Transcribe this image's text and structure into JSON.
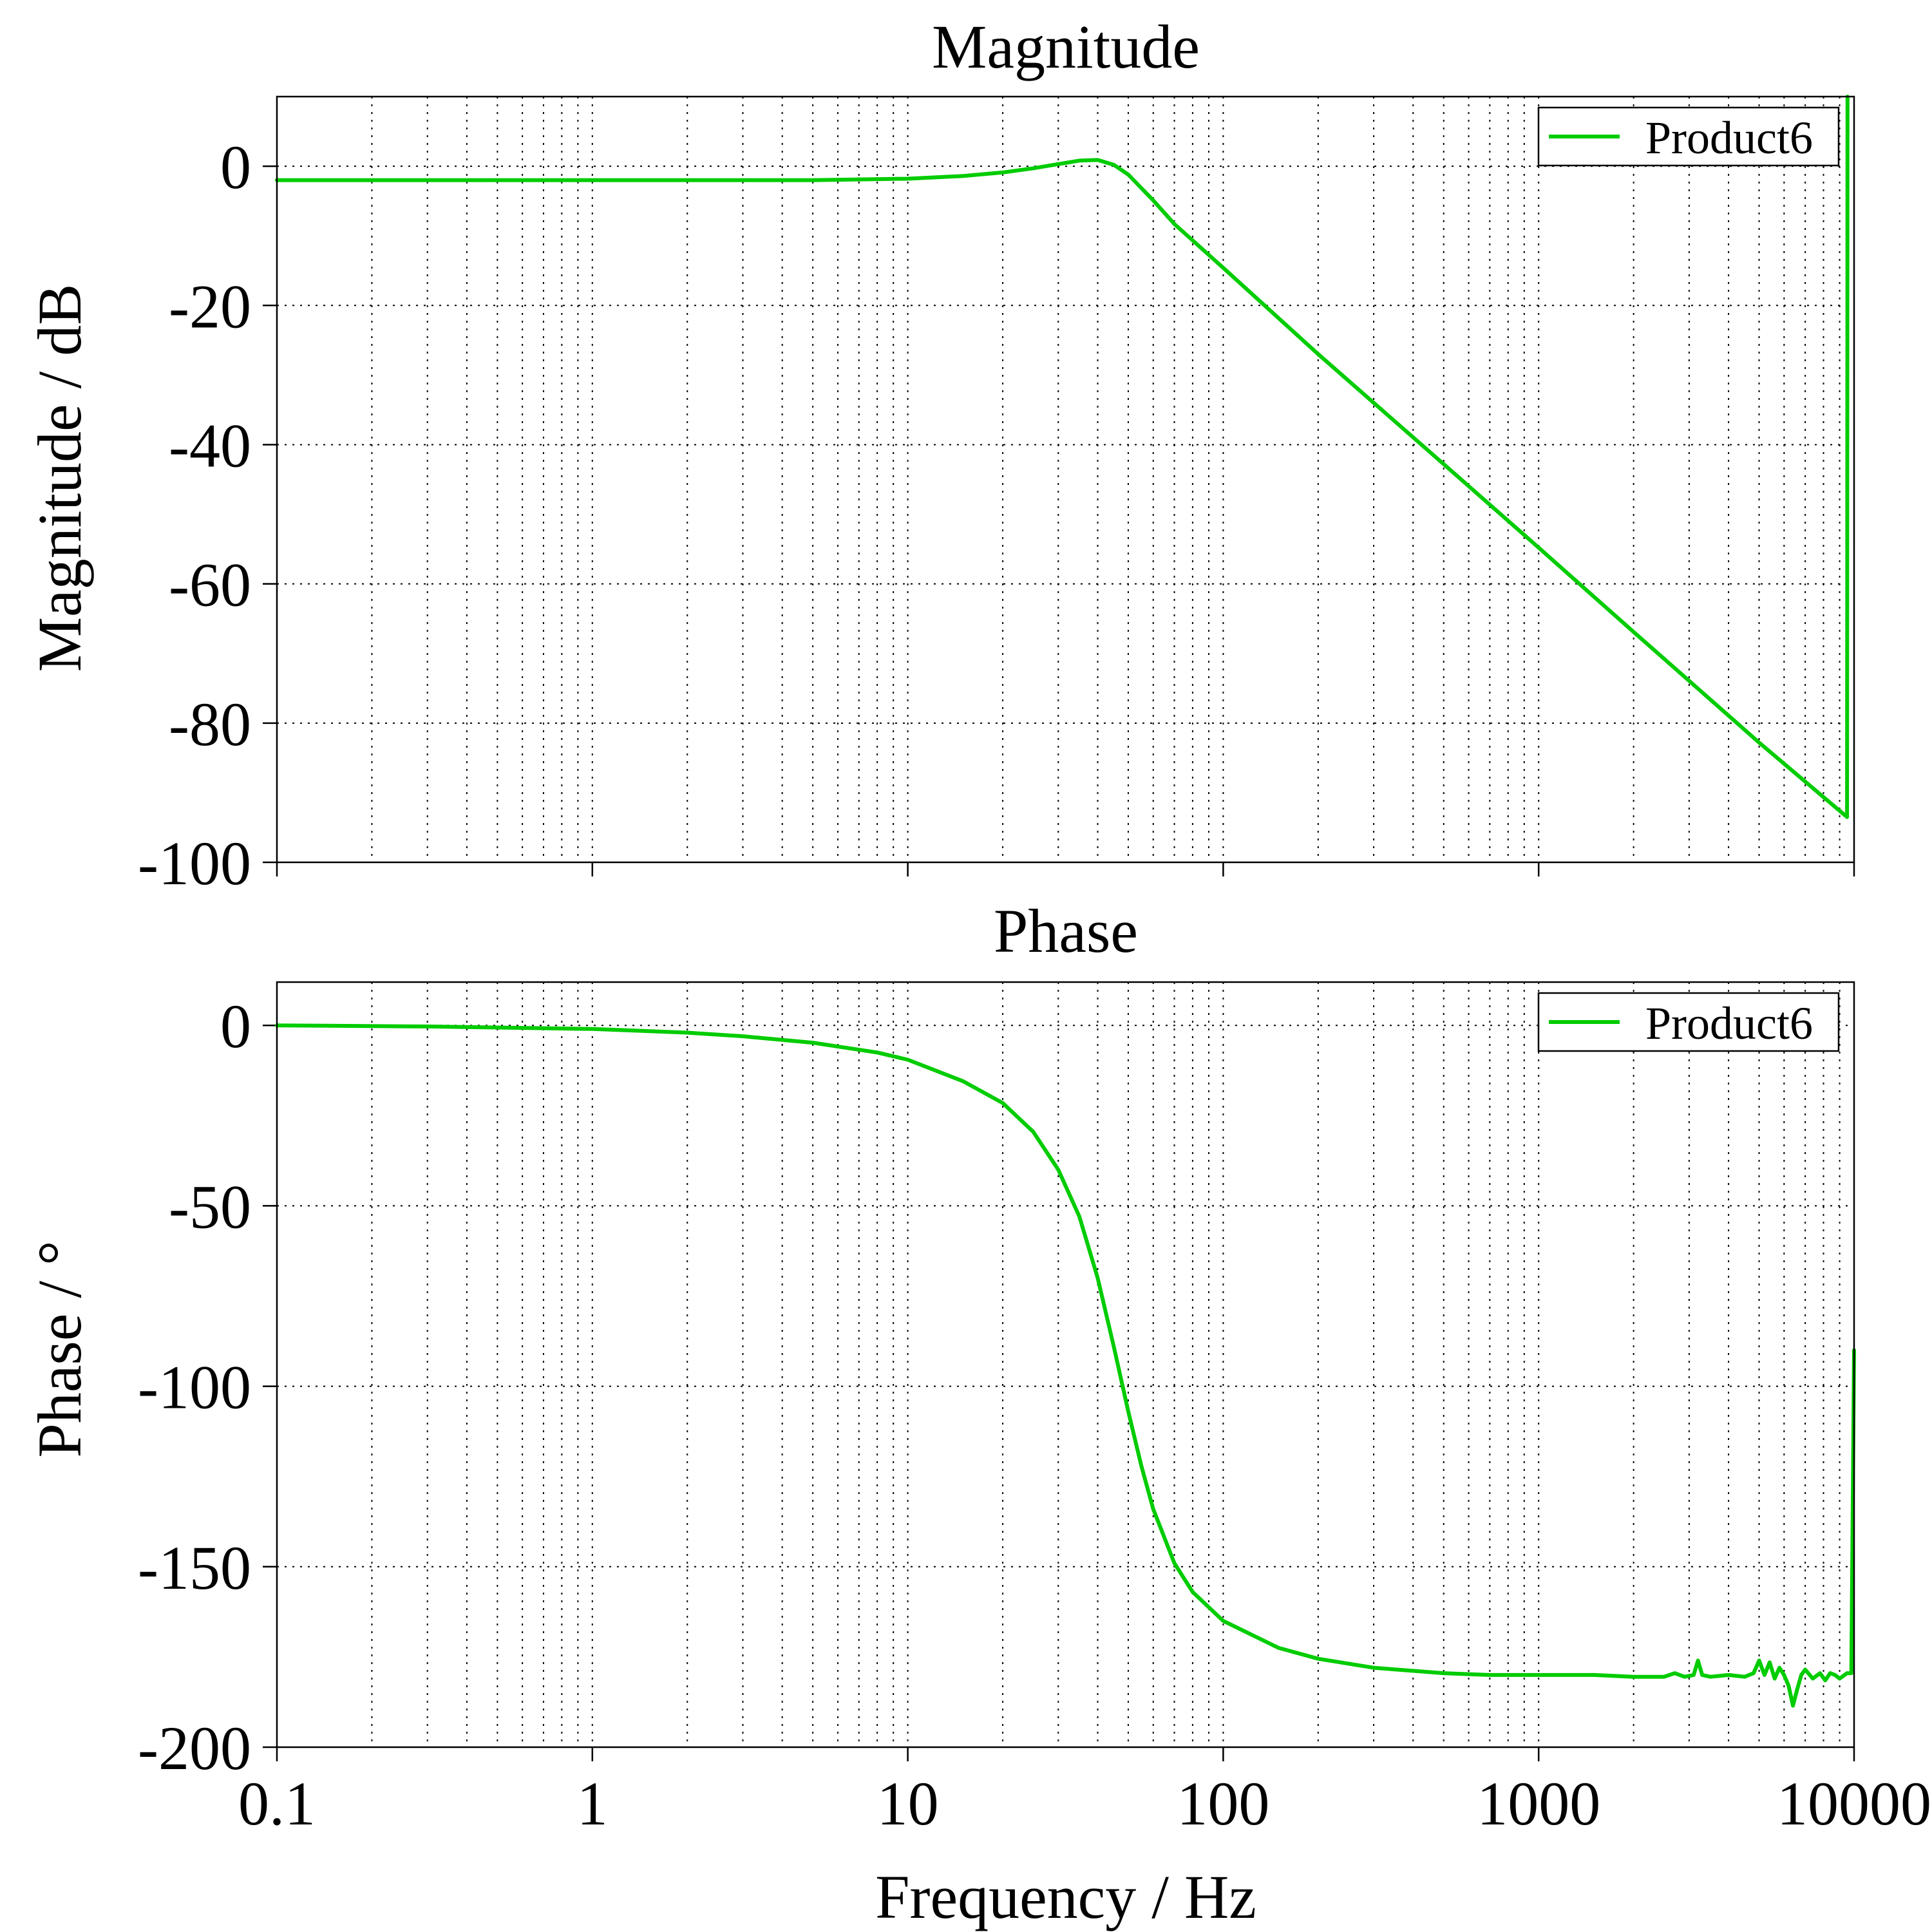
{
  "figure": {
    "xlabel": "Frequency / Hz"
  },
  "chart_data": [
    {
      "type": "line",
      "title": "Magnitude",
      "xlabel": "Frequency / Hz",
      "ylabel": "Magnitude / dB",
      "xscale": "log",
      "xlim": [
        0.1,
        10000
      ],
      "ylim": [
        -100,
        10
      ],
      "x_ticks": [
        "0.1",
        "1",
        "10",
        "100",
        "1000",
        "10000"
      ],
      "y_ticks": [
        0,
        -20,
        -40,
        -60,
        -80,
        -100
      ],
      "y_tick_labels": [
        "0",
        "-20",
        "-40",
        "-60",
        "-80",
        "-100"
      ],
      "grid": true,
      "legend": "top-right",
      "series": [
        {
          "name": "Product6",
          "color": "#00cc00",
          "x": [
            0.1,
            1,
            3,
            5,
            10,
            15,
            20,
            25,
            30,
            35,
            40,
            45,
            50,
            60,
            70,
            100,
            200,
            500,
            1000,
            2000,
            5000,
            9500,
            9500,
            9530
          ],
          "y": [
            -2,
            -2,
            -2,
            -2,
            -1.8,
            -1.4,
            -0.9,
            -0.3,
            0.3,
            0.8,
            0.9,
            0.2,
            -1.2,
            -4.9,
            -8.3,
            -14.6,
            -27,
            -42.8,
            -54.8,
            -66.9,
            -82.8,
            -93.5,
            -93.5,
            10
          ]
        }
      ]
    },
    {
      "type": "line",
      "title": "Phase",
      "xlabel": "Frequency / Hz",
      "ylabel": "Phase / °",
      "xscale": "log",
      "xlim": [
        0.1,
        10000
      ],
      "ylim": [
        -200,
        12
      ],
      "x_ticks": [
        "0.1",
        "1",
        "10",
        "100",
        "1000",
        "10000"
      ],
      "x_tick_labels": [
        "0.1",
        "1",
        "10",
        "100",
        "1000",
        "10000"
      ],
      "y_ticks": [
        0,
        -50,
        -100,
        -150,
        -200
      ],
      "y_tick_labels": [
        "0",
        "-50",
        "-100",
        "-150",
        "-200"
      ],
      "grid": true,
      "legend": "top-right",
      "series": [
        {
          "name": "Product6",
          "color": "#00cc00",
          "x": [
            0.1,
            0.3,
            1,
            2,
            3,
            5,
            8,
            10,
            15,
            20,
            25,
            30,
            35,
            40,
            45,
            50,
            55,
            60,
            70,
            80,
            100,
            150,
            200,
            300,
            500,
            700,
            1000,
            1500,
            2000,
            2500,
            2700,
            2900,
            3100,
            3200,
            3300,
            3500,
            4000,
            4500,
            4800,
            5000,
            5200,
            5400,
            5600,
            5800,
            6000,
            6200,
            6400,
            6600,
            6800,
            7000,
            7400,
            7800,
            8100,
            8400,
            8700,
            9000,
            9500,
            9600,
            9800,
            10000
          ],
          "y": [
            0,
            -0.3,
            -1,
            -2,
            -3,
            -4.8,
            -7.5,
            -9.5,
            -15.5,
            -21.5,
            -29.5,
            -40,
            -53,
            -70,
            -89,
            -107,
            -122,
            -134,
            -149,
            -157,
            -165,
            -172.5,
            -175.5,
            -178,
            -179.5,
            -180,
            -180,
            -180,
            -180.5,
            -180.5,
            -179.5,
            -180.5,
            -180,
            -176,
            -180,
            -180.5,
            -180,
            -180.5,
            -179.5,
            -176,
            -180,
            -176.5,
            -181,
            -178,
            -180,
            -183,
            -188.5,
            -184,
            -180,
            -178.5,
            -181,
            -179.5,
            -181.5,
            -179.5,
            -180,
            -181,
            -179.5,
            -179.5,
            -179.5,
            -90
          ]
        }
      ]
    }
  ]
}
